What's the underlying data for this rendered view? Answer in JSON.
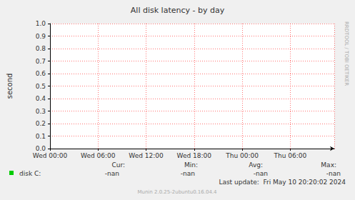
{
  "chart_data": {
    "type": "line",
    "title": "All disk latency - by day",
    "y_label": "second",
    "x": [],
    "series": [
      {
        "name": "disk C:",
        "color": "#00cc00",
        "values": [],
        "stats": [
          {
            "label": "Cur:",
            "value": "-nan"
          },
          {
            "label": "Min:",
            "value": "-nan"
          },
          {
            "label": "Avg:",
            "value": "-nan"
          },
          {
            "label": "Max:",
            "value": "-nan"
          }
        ]
      }
    ],
    "xlim": [
      0,
      35.5
    ],
    "xticks": [
      {
        "value": 0,
        "label": "Wed 00:00"
      },
      {
        "value": 6,
        "label": "Wed 06:00"
      },
      {
        "value": 12,
        "label": "Wed 12:00"
      },
      {
        "value": 18,
        "label": "Wed 18:00"
      },
      {
        "value": 24,
        "label": "Thu 00:00"
      },
      {
        "value": 30,
        "label": "Thu 06:00"
      }
    ],
    "ylim": [
      0,
      1
    ],
    "yticks": [
      {
        "value": 0,
        "label": "0.0"
      },
      {
        "value": 0.1,
        "label": "0.1"
      },
      {
        "value": 0.2,
        "label": "0.2"
      },
      {
        "value": 0.3,
        "label": "0.3"
      },
      {
        "value": 0.4,
        "label": "0.4"
      },
      {
        "value": 0.5,
        "label": "0.5"
      },
      {
        "value": 0.6,
        "label": "0.6"
      },
      {
        "value": 0.7,
        "label": "0.7"
      },
      {
        "value": 0.8,
        "label": "0.8"
      },
      {
        "value": 0.9,
        "label": "0.9"
      },
      {
        "value": 1,
        "label": "1.0"
      }
    ],
    "grid": true,
    "last_update": "Last update:  Fri May 10 20:20:02 2024",
    "watermark": "RRDTOOL / TOBI OETIKER",
    "footer": "Munin 2.0.25-2ubuntu0.16.04.4"
  }
}
